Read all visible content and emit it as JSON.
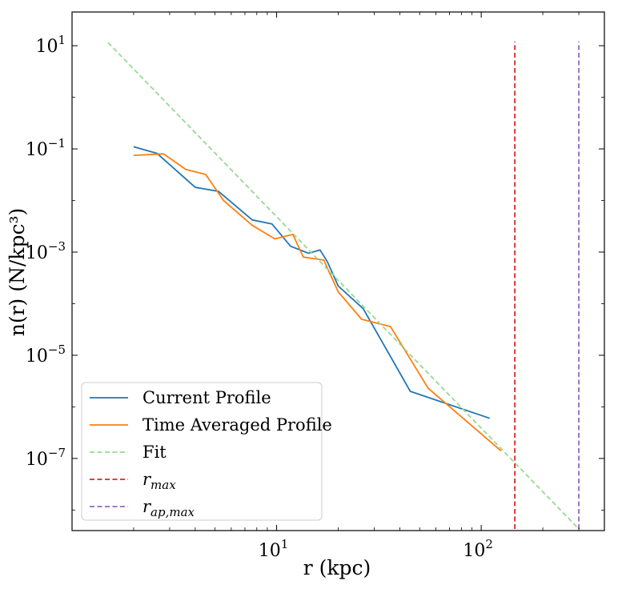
{
  "chart_data": {
    "type": "line",
    "title": "",
    "xlabel": "r (kpc)",
    "ylabel": "n(r) (N/kpc³)",
    "x_scale": "log",
    "y_scale": "log",
    "xlim": [
      1.0,
      400
    ],
    "ylim": [
      4e-09,
      45
    ],
    "grid": false,
    "legend_position": "bottom-left",
    "x_ticks": [
      {
        "value": 10,
        "base": "10",
        "exp": "1"
      },
      {
        "value": 100,
        "base": "10",
        "exp": "2"
      }
    ],
    "y_ticks": [
      {
        "value": 10,
        "base": "10",
        "exp": "1"
      },
      {
        "value": 0.1,
        "base": "10",
        "exp": "−1"
      },
      {
        "value": 0.001,
        "base": "10",
        "exp": "−3"
      },
      {
        "value": 1e-05,
        "base": "10",
        "exp": "−5"
      },
      {
        "value": 1e-07,
        "base": "10",
        "exp": "−7"
      }
    ],
    "series": [
      {
        "name": "Current Profile",
        "style": "solid",
        "color": "#1f77b4",
        "x": [
          2.0,
          2.6,
          4.0,
          5.2,
          7.6,
          9.5,
          11.7,
          14.3,
          16.3,
          17.7,
          20.0,
          26.5,
          45.0,
          110.0
        ],
        "y": [
          0.11,
          0.082,
          0.018,
          0.015,
          0.0042,
          0.0035,
          0.0013,
          0.00095,
          0.0011,
          0.00065,
          0.00022,
          8e-05,
          2e-06,
          6e-07
        ]
      },
      {
        "name": "Time Averaged Profile",
        "style": "solid",
        "color": "#ff7f0e",
        "x": [
          2.0,
          2.8,
          3.6,
          4.5,
          5.5,
          7.6,
          9.8,
          12.0,
          13.5,
          17.0,
          20.0,
          26.0,
          36.0,
          55.0,
          125.0
        ],
        "y": [
          0.075,
          0.08,
          0.04,
          0.032,
          0.01,
          0.0033,
          0.0018,
          0.0022,
          0.0008,
          0.0007,
          0.00017,
          5e-05,
          3.6e-05,
          2.3e-06,
          1.4e-07
        ]
      },
      {
        "name": "Fit",
        "style": "dashed",
        "color": "#98d993",
        "x": [
          1.5,
          300.0
        ],
        "y": [
          11.5,
          4.3e-09
        ]
      },
      {
        "name": "r_max",
        "style": "dashed",
        "color": "#d62728",
        "x": [
          146.0,
          146.0
        ],
        "y": [
          4.3e-09,
          12.0
        ]
      },
      {
        "name": "r_ap,max",
        "style": "dashed",
        "color": "#9467bd",
        "x": [
          300.0,
          300.0
        ],
        "y": [
          4.3e-09,
          12.0
        ]
      }
    ],
    "legend": {
      "entries": [
        {
          "label": "Current Profile",
          "color": "#1f77b4",
          "style": "solid"
        },
        {
          "label": "Time Averaged Profile",
          "color": "#ff7f0e",
          "style": "solid"
        },
        {
          "label": "Fit",
          "color": "#98d993",
          "style": "dashed"
        },
        {
          "label_base": "r",
          "label_sub": "max",
          "color": "#d62728",
          "style": "dashed"
        },
        {
          "label_base": "r",
          "label_sub": "ap,max",
          "color": "#9467bd",
          "style": "dashed"
        }
      ]
    }
  }
}
